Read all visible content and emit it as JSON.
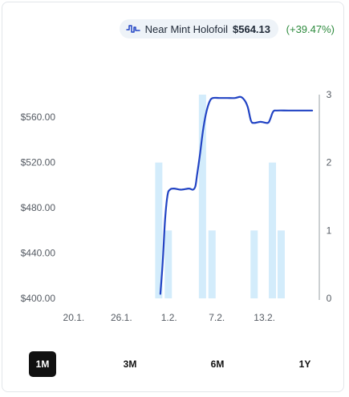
{
  "header": {
    "variant_label": "Near Mint Holofoil",
    "price": "$564.13",
    "change": "(+39.47%)",
    "icon": "price-history-icon"
  },
  "ranges": [
    {
      "label": "1M",
      "active": true
    },
    {
      "label": "3M",
      "active": false
    },
    {
      "label": "6M",
      "active": false
    },
    {
      "label": "1Y",
      "active": false
    }
  ],
  "colors": {
    "line": "#2244c4",
    "bars": "#d3ecfb",
    "positive": "#2e8b3e",
    "active_bg": "#111111"
  },
  "chart_data": {
    "type": "line",
    "x_tick_labels": [
      "20.1.",
      "26.1.",
      "1.2.",
      "7.2.",
      "13.2."
    ],
    "x_tick_days": [
      0,
      6,
      12,
      18,
      24
    ],
    "x_range_days": [
      -1.2,
      30.9
    ],
    "y_left": {
      "ticks": [
        "$400.00",
        "$440.00",
        "$480.00",
        "$520.00",
        "$560.00"
      ],
      "tick_values": [
        400,
        440,
        480,
        520,
        560
      ],
      "range": [
        400,
        580
      ]
    },
    "y_right": {
      "ticks": [
        "0",
        "1",
        "2",
        "3"
      ],
      "tick_values": [
        0,
        1,
        2,
        3
      ],
      "range": [
        0,
        3
      ]
    },
    "price_series": {
      "points": [
        [
          10.9,
          404
        ],
        [
          11.2,
          432
        ],
        [
          11.5,
          470
        ],
        [
          11.8,
          491
        ],
        [
          12.1,
          496
        ],
        [
          12.6,
          497
        ],
        [
          13.5,
          496
        ],
        [
          14.5,
          497
        ],
        [
          15.0,
          496
        ],
        [
          15.3,
          499
        ],
        [
          15.5,
          508
        ],
        [
          15.9,
          528
        ],
        [
          16.3,
          550
        ],
        [
          16.7,
          565
        ],
        [
          17.1,
          574
        ],
        [
          17.5,
          577
        ],
        [
          18.3,
          577
        ],
        [
          19.3,
          577
        ],
        [
          20.3,
          577
        ],
        [
          21.0,
          578
        ],
        [
          21.5,
          575
        ],
        [
          21.9,
          569
        ],
        [
          22.3,
          557
        ],
        [
          22.7,
          555
        ],
        [
          23.5,
          556
        ],
        [
          24.4,
          555
        ],
        [
          24.7,
          558
        ],
        [
          25.1,
          565
        ],
        [
          25.6,
          566
        ],
        [
          27.0,
          566
        ],
        [
          28.5,
          566
        ],
        [
          30.0,
          566
        ]
      ]
    },
    "volume_series": {
      "bars": [
        {
          "x": 10.7,
          "v": 2
        },
        {
          "x": 11.9,
          "v": 1
        },
        {
          "x": 16.2,
          "v": 3
        },
        {
          "x": 17.4,
          "v": 1
        },
        {
          "x": 22.7,
          "v": 1
        },
        {
          "x": 25.0,
          "v": 2
        },
        {
          "x": 26.1,
          "v": 1
        }
      ]
    }
  }
}
